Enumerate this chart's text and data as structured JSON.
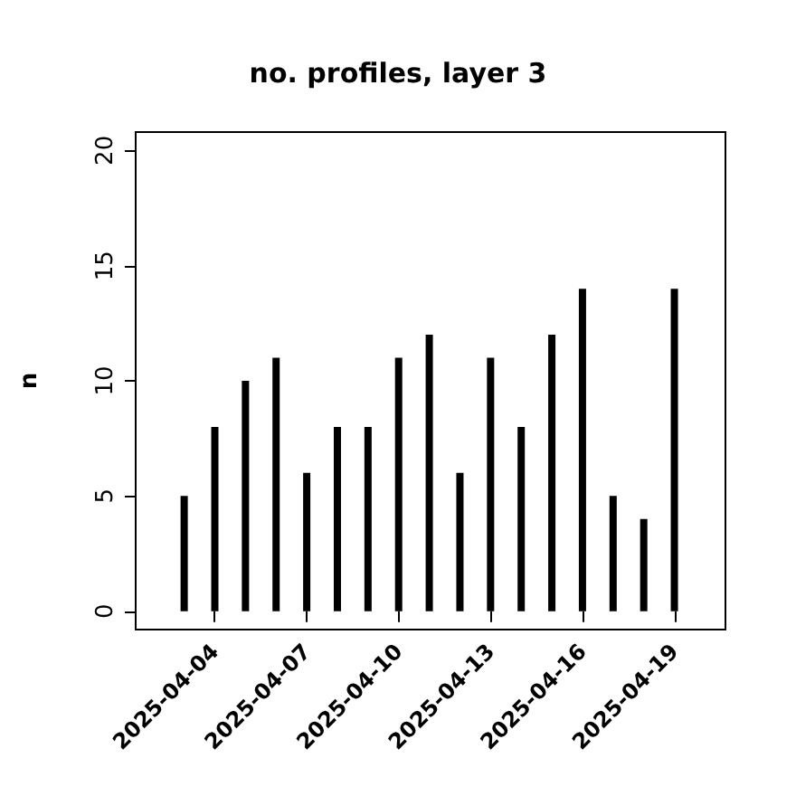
{
  "chart_data": {
    "type": "bar",
    "title": "no. profiles, layer 3",
    "ylabel": "n",
    "x": [
      "2025-04-03",
      "2025-04-04",
      "2025-04-05",
      "2025-04-06",
      "2025-04-07",
      "2025-04-08",
      "2025-04-09",
      "2025-04-10",
      "2025-04-11",
      "2025-04-12",
      "2025-04-13",
      "2025-04-14",
      "2025-04-15",
      "2025-04-16",
      "2025-04-17",
      "2025-04-18",
      "2025-04-19"
    ],
    "values": [
      5,
      8,
      10,
      11,
      6,
      8,
      8,
      11,
      12,
      6,
      11,
      8,
      12,
      14,
      5,
      4,
      14
    ],
    "color": "#000000",
    "xlim": [
      "2025-04-01T10:00",
      "2025-04-20T16:00"
    ],
    "xticks": [
      "2025-04-04",
      "2025-04-07",
      "2025-04-10",
      "2025-04-13",
      "2025-04-16",
      "2025-04-19"
    ],
    "ylim": [
      -0.8,
      20.8
    ],
    "yticks": [
      0,
      5,
      10,
      15,
      20
    ],
    "grid": false
  }
}
